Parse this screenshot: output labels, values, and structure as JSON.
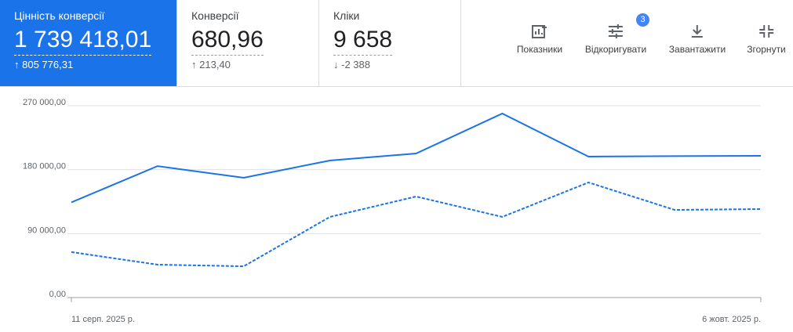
{
  "scorecards": [
    {
      "title": "Цінність конверсії",
      "value": "1 739 418,01",
      "change": "805 776,31",
      "direction": "up"
    },
    {
      "title": "Конверсії",
      "value": "680,96",
      "change": "213,40",
      "direction": "up"
    },
    {
      "title": "Кліки",
      "value": "9 658",
      "change": "-2 388",
      "direction": "down"
    }
  ],
  "toolbar": [
    {
      "label": "Показники"
    },
    {
      "label": "Відкоригувати",
      "badge": "3"
    },
    {
      "label": "Завантажити"
    },
    {
      "label": "Згорнути"
    }
  ],
  "chart_data": {
    "type": "line",
    "categories": [
      "11 серп. 2025 р.",
      null,
      null,
      null,
      null,
      null,
      null,
      null,
      "6 жовт. 2025 р."
    ],
    "series": [
      {
        "color": "#1a73e8",
        "dashed": false,
        "values": [
          134000,
          185000,
          168600,
          192900,
          202800,
          259000,
          198400,
          199000,
          199500
        ]
      },
      {
        "color": "#1a73e8",
        "dashed": true,
        "values": [
          64000,
          46300,
          44000,
          113500,
          142200,
          113500,
          162000,
          123400,
          124500
        ]
      }
    ],
    "ylim": [
      0,
      270000
    ],
    "yticks": [
      {
        "value": 0,
        "label": "0,00"
      },
      {
        "value": 90000,
        "label": "90 000,00"
      },
      {
        "value": 180000,
        "label": "180 000,00"
      },
      {
        "value": 270000,
        "label": "270 000,00"
      }
    ],
    "grid": true
  }
}
